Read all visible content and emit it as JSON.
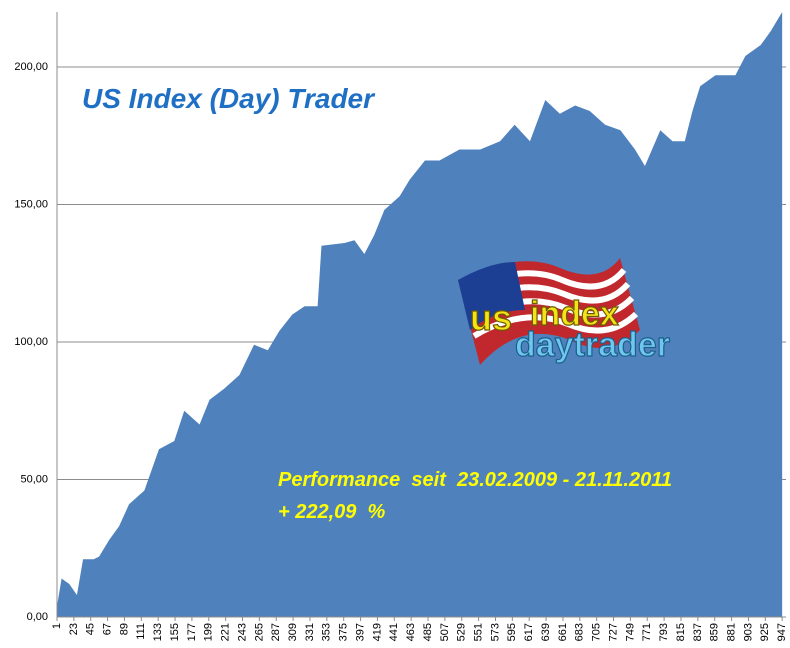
{
  "chart_data": {
    "type": "area",
    "title": "US Index (Day) Trader",
    "annotations": [
      "Performance  seit  23.02.2009 - 21.11.2011",
      "+ 222,09  %"
    ],
    "logo": [
      "us",
      "index",
      "daytrader"
    ],
    "color": "#4f81bd",
    "x": [
      1,
      7,
      17,
      27,
      35,
      49,
      56,
      69,
      82,
      95,
      115,
      134,
      154,
      167,
      187,
      200,
      219,
      239,
      258,
      276,
      291,
      308,
      324,
      341,
      346,
      376,
      389,
      402,
      415,
      428,
      448,
      461,
      481,
      500,
      526,
      553,
      579,
      598,
      618,
      638,
      657,
      677,
      696,
      716,
      736,
      755,
      768,
      788,
      804,
      820,
      830,
      840,
      860,
      886,
      899,
      919,
      932,
      947
    ],
    "values": [
      4,
      14,
      12,
      8,
      21,
      21,
      22,
      28,
      33,
      41,
      46,
      61,
      64,
      75,
      70,
      79,
      83,
      88,
      99,
      97,
      104,
      110,
      113,
      113,
      135,
      136,
      137,
      132,
      139,
      148,
      153,
      159,
      166,
      166,
      170,
      170,
      173,
      179,
      173,
      188,
      183,
      186,
      184,
      179,
      177,
      170,
      164,
      177,
      173,
      173,
      184,
      193,
      197,
      197,
      204,
      208,
      213,
      220
    ],
    "xlim": [
      1,
      952
    ],
    "xticks": [
      1,
      23,
      45,
      67,
      89,
      111,
      133,
      155,
      177,
      199,
      221,
      243,
      265,
      287,
      309,
      331,
      353,
      375,
      397,
      419,
      441,
      463,
      485,
      507,
      529,
      551,
      573,
      595,
      617,
      639,
      661,
      683,
      705,
      727,
      749,
      771,
      793,
      815,
      837,
      859,
      881,
      903,
      925,
      947
    ],
    "ylim": [
      0,
      220
    ],
    "yticks": [
      {
        "value": 0,
        "label": "0,00"
      },
      {
        "value": 50,
        "label": "50,00"
      },
      {
        "value": 100,
        "label": "100,00"
      },
      {
        "value": 150,
        "label": "150,00"
      },
      {
        "value": 200,
        "label": "200,00"
      }
    ],
    "grid": true
  }
}
